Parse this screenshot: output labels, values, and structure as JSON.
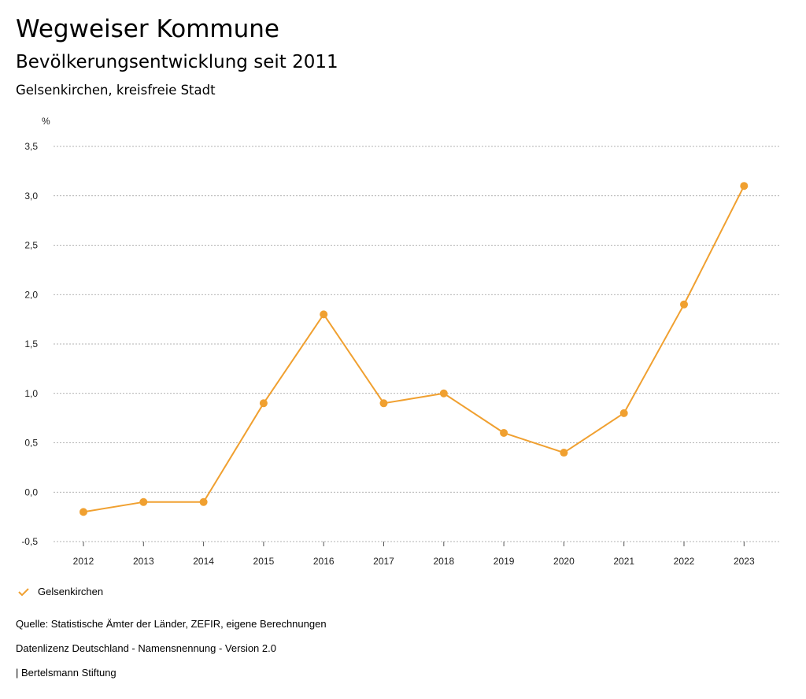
{
  "header": {
    "title": "Wegweiser Kommune",
    "subtitle": "Bevölkerungsentwicklung seit 2011",
    "region": "Gelsenkirchen, kreisfreie Stadt"
  },
  "chart_data": {
    "type": "line",
    "ylabel": "%",
    "ylim": [
      -0.5,
      3.5
    ],
    "yticks": [
      -0.5,
      0.0,
      0.5,
      1.0,
      1.5,
      2.0,
      2.5,
      3.0,
      3.5
    ],
    "ytick_labels": [
      "-0,5",
      "0,0",
      "0,5",
      "1,0",
      "1,5",
      "2,0",
      "2,5",
      "3,0",
      "3,5"
    ],
    "categories": [
      "2012",
      "2013",
      "2014",
      "2015",
      "2016",
      "2017",
      "2018",
      "2019",
      "2020",
      "2021",
      "2022",
      "2023"
    ],
    "series": [
      {
        "name": "Gelsenkirchen",
        "color": "#f0a030",
        "values": [
          -0.2,
          -0.1,
          -0.1,
          0.9,
          1.8,
          0.9,
          1.0,
          0.6,
          0.4,
          0.8,
          1.9,
          3.1
        ]
      }
    ],
    "grid": true,
    "legend_position": "bottom-left"
  },
  "footer": {
    "source": "Quelle: Statistische Ämter der Länder, ZEFIR, eigene Berechnungen",
    "license": "Datenlizenz Deutschland - Namensnennung - Version 2.0",
    "publisher": "| Bertelsmann Stiftung"
  }
}
